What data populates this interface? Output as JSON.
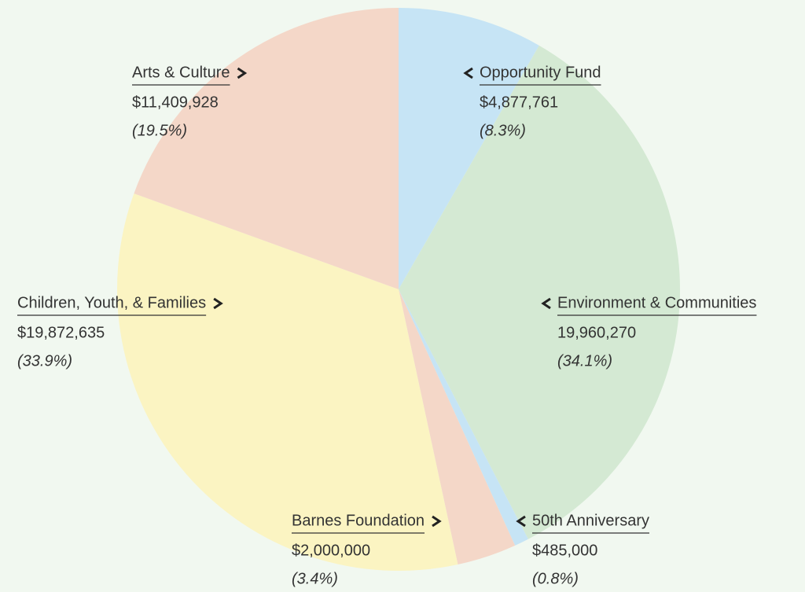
{
  "chart_data": {
    "type": "pie",
    "categories": [
      "Opportunity Fund",
      "Environment & Communities",
      "50th Anniversary",
      "Barnes Foundation",
      "Children, Youth, & Families",
      "Arts & Culture"
    ],
    "values": [
      4877761,
      19960270,
      485000,
      2000000,
      19872635,
      11409928
    ],
    "value_labels": [
      "$4,877,761",
      "19,960,270",
      "$485,000",
      "$2,000,000",
      "$19,872,635",
      "$11,409,928"
    ],
    "percent_labels": [
      "(8.3%)",
      "(34.1%)",
      "(0.8%)",
      "(3.4%)",
      "(33.9%)",
      "(19.5%)"
    ],
    "colors": [
      "#c6e4f5",
      "#d4e9d3",
      "#c6e4f5",
      "#f4d7c8",
      "#fbf4c2",
      "#f4d7c8"
    ]
  }
}
